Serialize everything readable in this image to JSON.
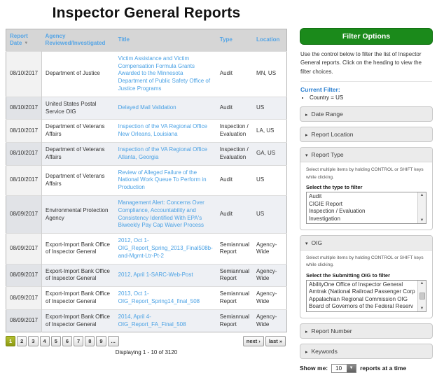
{
  "page": {
    "title": "Inspector General Reports"
  },
  "table": {
    "headers": {
      "date": "Report Date",
      "agency": "Agency Reviewed/Investigated",
      "title": "Title",
      "type": "Type",
      "location": "Location"
    },
    "rows": [
      {
        "date": "08/10/2017",
        "agency": "Department of Justice",
        "title": "Victim Assistance and Victim Compensation Formula Grants Awarded to the Minnesota Department of Public Safety Office of Justice Programs",
        "type": "Audit",
        "location": "MN, US"
      },
      {
        "date": "08/10/2017",
        "agency": "United States Postal Service OIG",
        "title": "Delayed Mail Validation",
        "type": "Audit",
        "location": "US"
      },
      {
        "date": "08/10/2017",
        "agency": "Department of Veterans Affairs",
        "title": "Inspection of the VA Regional Office New Orleans, Louisiana",
        "type": "Inspection / Evaluation",
        "location": "LA, US"
      },
      {
        "date": "08/10/2017",
        "agency": "Department of Veterans Affairs",
        "title": "Inspection of the VA Regional Office Atlanta, Georgia",
        "type": "Inspection / Evaluation",
        "location": "GA, US"
      },
      {
        "date": "08/10/2017",
        "agency": "Department of Veterans Affairs",
        "title": "Review of Alleged Failure of the National Work Queue To Perform in Production",
        "type": "Audit",
        "location": "US"
      },
      {
        "date": "08/09/2017",
        "agency": "Environmental Protection Agency",
        "title": "Management Alert: Concerns Over Compliance, Accountability and Consistency Identified With EPA's Biweekly Pay Cap Waiver Process",
        "type": "Audit",
        "location": "US"
      },
      {
        "date": "08/09/2017",
        "agency": "Export-Import Bank Office of Inspector General",
        "title": "2012, Oct 1-OIG_Report_Spring_2013_Final508b-and-Mgmt-Ltr-Pt-2",
        "type": "Semiannual Report",
        "location": "Agency-Wide"
      },
      {
        "date": "08/09/2017",
        "agency": "Export-Import Bank Office of Inspector General",
        "title": "2012, April 1-SARC-Web-Post",
        "type": "Semiannual Report",
        "location": "Agency-Wide"
      },
      {
        "date": "08/09/2017",
        "agency": "Export-Import Bank Office of Inspector General",
        "title": "2013, Oct 1-OIG_Report_Spring14_final_508",
        "type": "Semiannual Report",
        "location": "Agency-Wide"
      },
      {
        "date": "08/09/2017",
        "agency": "Export-Import Bank Office of Inspector General",
        "title": "2014, April 4-OIG_Report_FA_Final_508",
        "type": "Semiannual Report",
        "location": "Agency-Wide"
      }
    ]
  },
  "pagination": {
    "pages": [
      "1",
      "2",
      "3",
      "4",
      "5",
      "6",
      "7",
      "8",
      "9",
      "..."
    ],
    "active_page": "1",
    "next_label": "next ›",
    "last_label": "last »",
    "summary": "Displaying 1 - 10 of 3120"
  },
  "sidebar": {
    "filter_button_label": "Filter Options",
    "intro": "Use the control below to filter the list of Inspector General reports. Click on the heading to view the filter choices.",
    "current_filter_label": "Current Filter:",
    "current_filter_items": [
      "Country = US"
    ],
    "sections": {
      "date_range": "Date Range",
      "report_location": "Report Location",
      "report_number": "Report Number",
      "keywords": "Keywords"
    },
    "report_type": {
      "header": "Report Type",
      "hint": "Select multiple items by holding CONTROL or SHIFT keys while clicking.",
      "label": "Select the type to filter",
      "options": [
        "Audit",
        "CIGIE Report",
        "Inspection / Evaluation",
        "Investigation"
      ]
    },
    "oig": {
      "header": "OIG",
      "hint": "Select multiple items by holding CONTROL or SHIFT keys while clicking.",
      "label": "Select the Submitting OIG to filter",
      "options": [
        "AbilityOne Office of Inspector General",
        "Amtrak (National Railroad Passenger Corp",
        "Appalachian Regional Commission OIG",
        "Board of Governors of the Federal Reserv"
      ]
    },
    "show_me": {
      "prefix": "Show me:",
      "value": "10",
      "suffix": "reports at a time"
    }
  },
  "colors": {
    "accent_green": "#1b8a1b",
    "link_blue": "#4aa1e4",
    "sorted_header_blue": "#2a8ada",
    "active_page_olive": "#8c9913"
  }
}
